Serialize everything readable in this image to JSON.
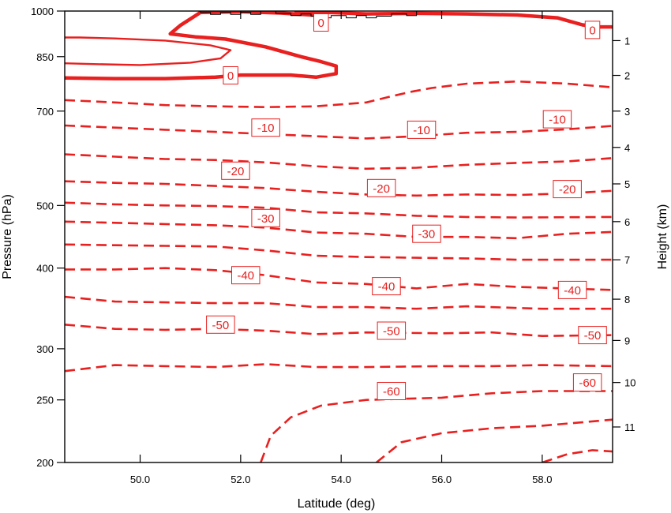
{
  "chart_data": {
    "type": "contour",
    "x_axis": {
      "label": "Latitude (deg)",
      "range": [
        48.5,
        59.4
      ],
      "ticks": [
        50,
        52,
        54,
        56,
        58
      ],
      "tick_labels": [
        "50.0",
        "52.0",
        "54.0",
        "56.0",
        "58.0"
      ]
    },
    "y_axis_left": {
      "label": "Pressure (hPa)",
      "scale": "log",
      "range": [
        1000,
        200
      ],
      "ticks": [
        200,
        250,
        300,
        400,
        500,
        700,
        850,
        1000
      ],
      "tick_labels": [
        "200",
        "250",
        "300",
        "400",
        "500",
        "700",
        "850",
        "1000"
      ]
    },
    "y_axis_right": {
      "label": "Height (km)",
      "ticks": [
        1,
        2,
        3,
        4,
        5,
        6,
        7,
        8,
        9,
        10,
        11
      ],
      "tick_labels": [
        "1",
        "2",
        "3",
        "4",
        "5",
        "6",
        "7",
        "8",
        "9",
        "10",
        "11"
      ],
      "pressure_at_tick_hPa": [
        900,
        795,
        700,
        615,
        540,
        472,
        412,
        358,
        309,
        266,
        227
      ]
    },
    "line_color": "#e8201f",
    "contours": [
      {
        "level": -60,
        "style": "dashed",
        "points": [
          [
            52.4,
            200
          ],
          [
            52.6,
            220
          ],
          [
            53.0,
            235
          ],
          [
            53.6,
            245
          ],
          [
            54.5,
            250
          ],
          [
            56,
            252
          ],
          [
            57,
            256
          ],
          [
            58,
            258
          ],
          [
            59.4,
            258
          ]
        ]
      },
      {
        "level": -60,
        "style": "dashed",
        "points": [
          [
            54.7,
            200
          ],
          [
            55.2,
            215
          ],
          [
            56,
            222
          ],
          [
            57,
            226
          ],
          [
            58,
            228
          ],
          [
            59.4,
            233
          ]
        ]
      },
      {
        "level": -60,
        "style": "dashed",
        "points": [
          [
            58,
            200
          ],
          [
            58.5,
            206
          ],
          [
            59,
            209
          ],
          [
            59.4,
            208
          ]
        ]
      },
      {
        "level": -55,
        "style": "dashed",
        "points": [
          [
            48.5,
            277
          ],
          [
            49.5,
            283
          ],
          [
            50.5,
            282
          ],
          [
            51.5,
            281
          ],
          [
            52.5,
            284
          ],
          [
            53.5,
            281
          ],
          [
            54.5,
            281
          ],
          [
            56,
            282
          ],
          [
            57,
            282
          ],
          [
            58,
            283
          ],
          [
            59.4,
            282
          ]
        ]
      },
      {
        "level": -50,
        "style": "dashed",
        "points": [
          [
            48.5,
            327
          ],
          [
            49.5,
            322
          ],
          [
            50.5,
            321
          ],
          [
            51.5,
            322
          ],
          [
            52.5,
            320
          ],
          [
            53.5,
            316
          ],
          [
            54.5,
            318
          ],
          [
            56,
            317
          ],
          [
            57,
            318
          ],
          [
            58,
            314
          ],
          [
            59.4,
            315
          ]
        ]
      },
      {
        "level": -45,
        "style": "dashed",
        "points": [
          [
            48.5,
            361
          ],
          [
            49.5,
            355
          ],
          [
            50.5,
            354
          ],
          [
            51.5,
            353
          ],
          [
            52.5,
            353
          ],
          [
            53.5,
            348
          ],
          [
            54.5,
            348
          ],
          [
            55.5,
            346
          ],
          [
            56.5,
            349
          ],
          [
            58,
            346
          ],
          [
            59.4,
            346
          ]
        ]
      },
      {
        "level": -40,
        "style": "dashed",
        "points": [
          [
            48.5,
            398
          ],
          [
            49.5,
            398
          ],
          [
            50.5,
            400
          ],
          [
            51.5,
            397
          ],
          [
            52.5,
            390
          ],
          [
            53.5,
            380
          ],
          [
            54.5,
            378
          ],
          [
            55.5,
            372
          ],
          [
            56.5,
            378
          ],
          [
            57.5,
            374
          ],
          [
            59.4,
            370
          ]
        ]
      },
      {
        "level": -35,
        "style": "dashed",
        "points": [
          [
            48.5,
            435
          ],
          [
            49.5,
            434
          ],
          [
            50.5,
            433
          ],
          [
            51.5,
            432
          ],
          [
            52.5,
            426
          ],
          [
            53.5,
            418
          ],
          [
            54.5,
            416
          ],
          [
            55.5,
            415
          ],
          [
            56.5,
            414
          ],
          [
            57.5,
            412
          ],
          [
            59.4,
            412
          ]
        ]
      },
      {
        "level": -30,
        "style": "dashed",
        "points": [
          [
            48.5,
            472
          ],
          [
            49.5,
            470
          ],
          [
            50.5,
            468
          ],
          [
            51.5,
            466
          ],
          [
            52.5,
            462
          ],
          [
            53.5,
            454
          ],
          [
            54.5,
            452
          ],
          [
            55.5,
            447
          ],
          [
            56.5,
            447
          ],
          [
            57.5,
            445
          ],
          [
            58.5,
            452
          ],
          [
            59.4,
            455
          ]
        ]
      },
      {
        "level": -25,
        "style": "dashed",
        "points": [
          [
            48.5,
            505
          ],
          [
            49.5,
            502
          ],
          [
            50.5,
            500
          ],
          [
            51.5,
            499
          ],
          [
            52.5,
            496
          ],
          [
            53.5,
            488
          ],
          [
            54.5,
            486
          ],
          [
            55.5,
            482
          ],
          [
            56.5,
            480
          ],
          [
            57.5,
            479
          ],
          [
            59.4,
            480
          ]
        ]
      },
      {
        "level": -20,
        "style": "dashed",
        "points": [
          [
            48.5,
            545
          ],
          [
            49.5,
            542
          ],
          [
            50.5,
            540
          ],
          [
            51.5,
            536
          ],
          [
            52.5,
            532
          ],
          [
            53.5,
            525
          ],
          [
            54.5,
            520
          ],
          [
            55.5,
            518
          ],
          [
            56.5,
            520
          ],
          [
            57.5,
            519
          ],
          [
            58.5,
            522
          ],
          [
            59.4,
            527
          ]
        ]
      },
      {
        "level": -15,
        "style": "dashed",
        "points": [
          [
            48.5,
            600
          ],
          [
            49.5,
            595
          ],
          [
            50.5,
            590
          ],
          [
            51.5,
            588
          ],
          [
            52.5,
            583
          ],
          [
            53.5,
            575
          ],
          [
            54.5,
            570
          ],
          [
            55.5,
            572
          ],
          [
            56.5,
            578
          ],
          [
            57.5,
            582
          ],
          [
            58.5,
            585
          ],
          [
            59.4,
            592
          ]
        ]
      },
      {
        "level": -10,
        "style": "dashed",
        "points": [
          [
            48.5,
            665
          ],
          [
            49.5,
            660
          ],
          [
            50.5,
            655
          ],
          [
            51.5,
            650
          ],
          [
            52.5,
            645
          ],
          [
            53.5,
            640
          ],
          [
            54.5,
            635
          ],
          [
            55.5,
            640
          ],
          [
            56.5,
            648
          ],
          [
            57.5,
            650
          ],
          [
            58.5,
            656
          ],
          [
            59.4,
            664
          ]
        ]
      },
      {
        "level": -5,
        "style": "dashed",
        "points": [
          [
            48.5,
            728
          ],
          [
            49.5,
            722
          ],
          [
            50.5,
            715
          ],
          [
            51.5,
            712
          ],
          [
            52.5,
            710
          ],
          [
            53.5,
            712
          ],
          [
            54.5,
            722
          ],
          [
            55,
            738
          ],
          [
            55.4,
            750
          ],
          [
            55.8,
            760
          ],
          [
            56.5,
            772
          ],
          [
            57.5,
            778
          ],
          [
            58.5,
            772
          ],
          [
            59.4,
            762
          ]
        ]
      },
      {
        "level": 0,
        "style": "solid-thick",
        "points": [
          [
            48.5,
            788
          ],
          [
            49.5,
            786
          ],
          [
            50.5,
            786
          ],
          [
            51.5,
            790
          ],
          [
            52,
            796
          ],
          [
            53,
            796
          ],
          [
            53.5,
            790
          ],
          [
            53.9,
            800
          ],
          [
            53.9,
            822
          ],
          [
            53.6,
            835
          ],
          [
            53.2,
            850
          ],
          [
            52.5,
            880
          ],
          [
            51.7,
            905
          ],
          [
            51.1,
            912
          ],
          [
            50.6,
            922
          ],
          [
            50.8,
            950
          ],
          [
            51.2,
            995
          ],
          [
            52,
            998
          ],
          [
            52.8,
            993
          ],
          [
            53.5,
            985
          ],
          [
            53.7,
            990
          ]
        ]
      },
      {
        "level": 0,
        "style": "solid-thick",
        "points": [
          [
            53.1,
            1000
          ],
          [
            53.6,
            996
          ],
          [
            54.5,
            990
          ],
          [
            55.5,
            992
          ],
          [
            56.5,
            990
          ],
          [
            57.5,
            986
          ],
          [
            58.3,
            976
          ],
          [
            58.8,
            952
          ],
          [
            59.1,
            945
          ],
          [
            59.4,
            945
          ]
        ]
      },
      {
        "level": 5,
        "style": "solid-thin",
        "points": [
          [
            48.5,
            830
          ],
          [
            49,
            828
          ],
          [
            50,
            825
          ],
          [
            51,
            832
          ],
          [
            51.6,
            845
          ],
          [
            51.8,
            870
          ],
          [
            51.4,
            885
          ],
          [
            50.5,
            900
          ],
          [
            49.5,
            907
          ],
          [
            48.8,
            910
          ],
          [
            48.5,
            910
          ]
        ]
      }
    ],
    "contour_labels": [
      {
        "text": "-60",
        "lat": 55.0,
        "p": 258
      },
      {
        "text": "-60",
        "lat": 58.9,
        "p": 266
      },
      {
        "text": "-50",
        "lat": 51.6,
        "p": 327
      },
      {
        "text": "-50",
        "lat": 55.0,
        "p": 320
      },
      {
        "text": "-50",
        "lat": 59.0,
        "p": 315
      },
      {
        "text": "-40",
        "lat": 52.1,
        "p": 390
      },
      {
        "text": "-40",
        "lat": 54.9,
        "p": 375
      },
      {
        "text": "-40",
        "lat": 58.6,
        "p": 370
      },
      {
        "text": "-30",
        "lat": 52.5,
        "p": 478
      },
      {
        "text": "-30",
        "lat": 55.7,
        "p": 452
      },
      {
        "text": "-20",
        "lat": 51.9,
        "p": 566
      },
      {
        "text": "-20",
        "lat": 54.8,
        "p": 532
      },
      {
        "text": "-20",
        "lat": 58.5,
        "p": 530
      },
      {
        "text": "-10",
        "lat": 52.5,
        "p": 660
      },
      {
        "text": "-10",
        "lat": 55.6,
        "p": 655
      },
      {
        "text": "-10",
        "lat": 58.3,
        "p": 680
      },
      {
        "text": "0",
        "lat": 51.8,
        "p": 795
      },
      {
        "text": "0",
        "lat": 53.6,
        "p": 960
      },
      {
        "text": "0",
        "lat": 59.0,
        "p": 935
      }
    ],
    "terrain": {
      "points": [
        [
          51.2,
          1000
        ],
        [
          51.2,
          995
        ],
        [
          51.4,
          995
        ],
        [
          51.4,
          988
        ],
        [
          51.6,
          988
        ],
        [
          51.6,
          995
        ],
        [
          51.8,
          995
        ],
        [
          51.8,
          988
        ],
        [
          52,
          988
        ],
        [
          52,
          995
        ],
        [
          52.2,
          995
        ],
        [
          52.2,
          988
        ],
        [
          52.4,
          988
        ],
        [
          52.4,
          1000
        ],
        [
          52.7,
          1000
        ],
        [
          52.7,
          992
        ],
        [
          53.0,
          992
        ],
        [
          53.0,
          984
        ],
        [
          53.2,
          984
        ],
        [
          53.2,
          990
        ],
        [
          53.4,
          990
        ],
        [
          53.4,
          982
        ],
        [
          53.6,
          982
        ],
        [
          53.6,
          976
        ],
        [
          53.8,
          976
        ],
        [
          53.8,
          984
        ],
        [
          54.1,
          984
        ],
        [
          54.1,
          976
        ],
        [
          54.3,
          976
        ],
        [
          54.3,
          984
        ],
        [
          54.5,
          984
        ],
        [
          54.5,
          976
        ],
        [
          54.7,
          976
        ],
        [
          54.7,
          982
        ],
        [
          55.0,
          982
        ],
        [
          55.0,
          990
        ],
        [
          55.3,
          990
        ],
        [
          55.3,
          984
        ],
        [
          55.5,
          984
        ],
        [
          55.5,
          1000
        ]
      ]
    }
  }
}
